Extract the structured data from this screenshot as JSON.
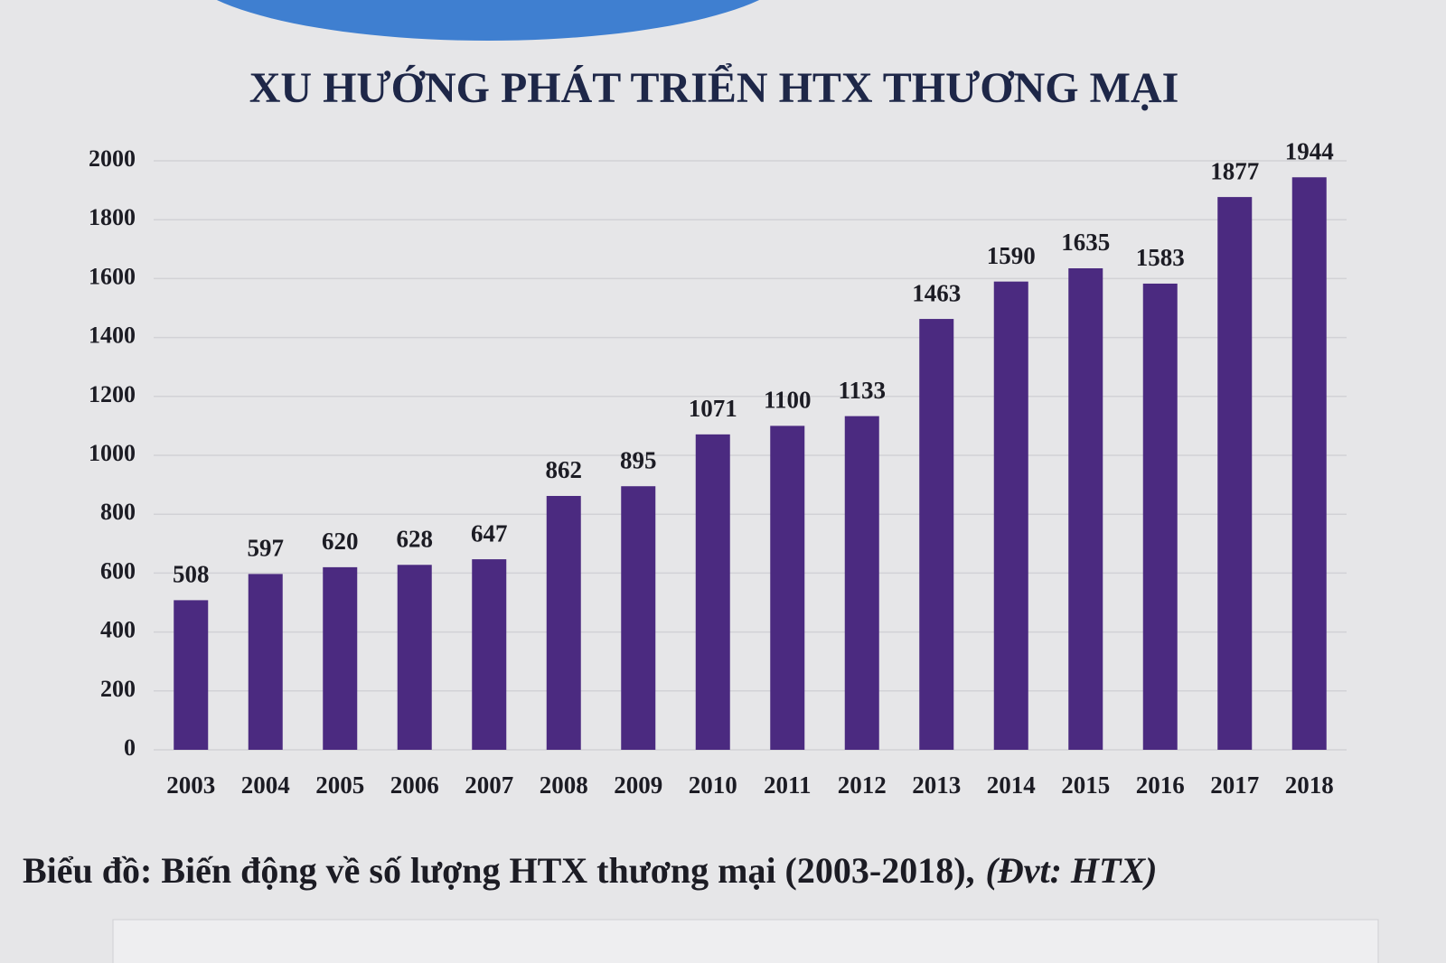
{
  "chart_data": {
    "type": "bar",
    "title": "XU HƯỚNG PHÁT TRIỂN HTX THƯƠNG MẠI",
    "caption": "Biểu đồ: Biến động về số lượng HTX thương mại (2003-2018),",
    "caption_unit": "(Đvt: HTX)",
    "categories": [
      "2003",
      "2004",
      "2005",
      "2006",
      "2007",
      "2008",
      "2009",
      "2010",
      "2011",
      "2012",
      "2013",
      "2014",
      "2015",
      "2016",
      "2017",
      "2018"
    ],
    "values": [
      508,
      597,
      620,
      628,
      647,
      862,
      895,
      1071,
      1100,
      1133,
      1463,
      1590,
      1635,
      1583,
      1877,
      1944
    ],
    "color": "#4b2a80",
    "ylim": [
      0,
      2000
    ],
    "yticks": [
      0,
      200,
      400,
      600,
      800,
      1000,
      1200,
      1400,
      1600,
      1800,
      2000
    ],
    "grid": true
  }
}
